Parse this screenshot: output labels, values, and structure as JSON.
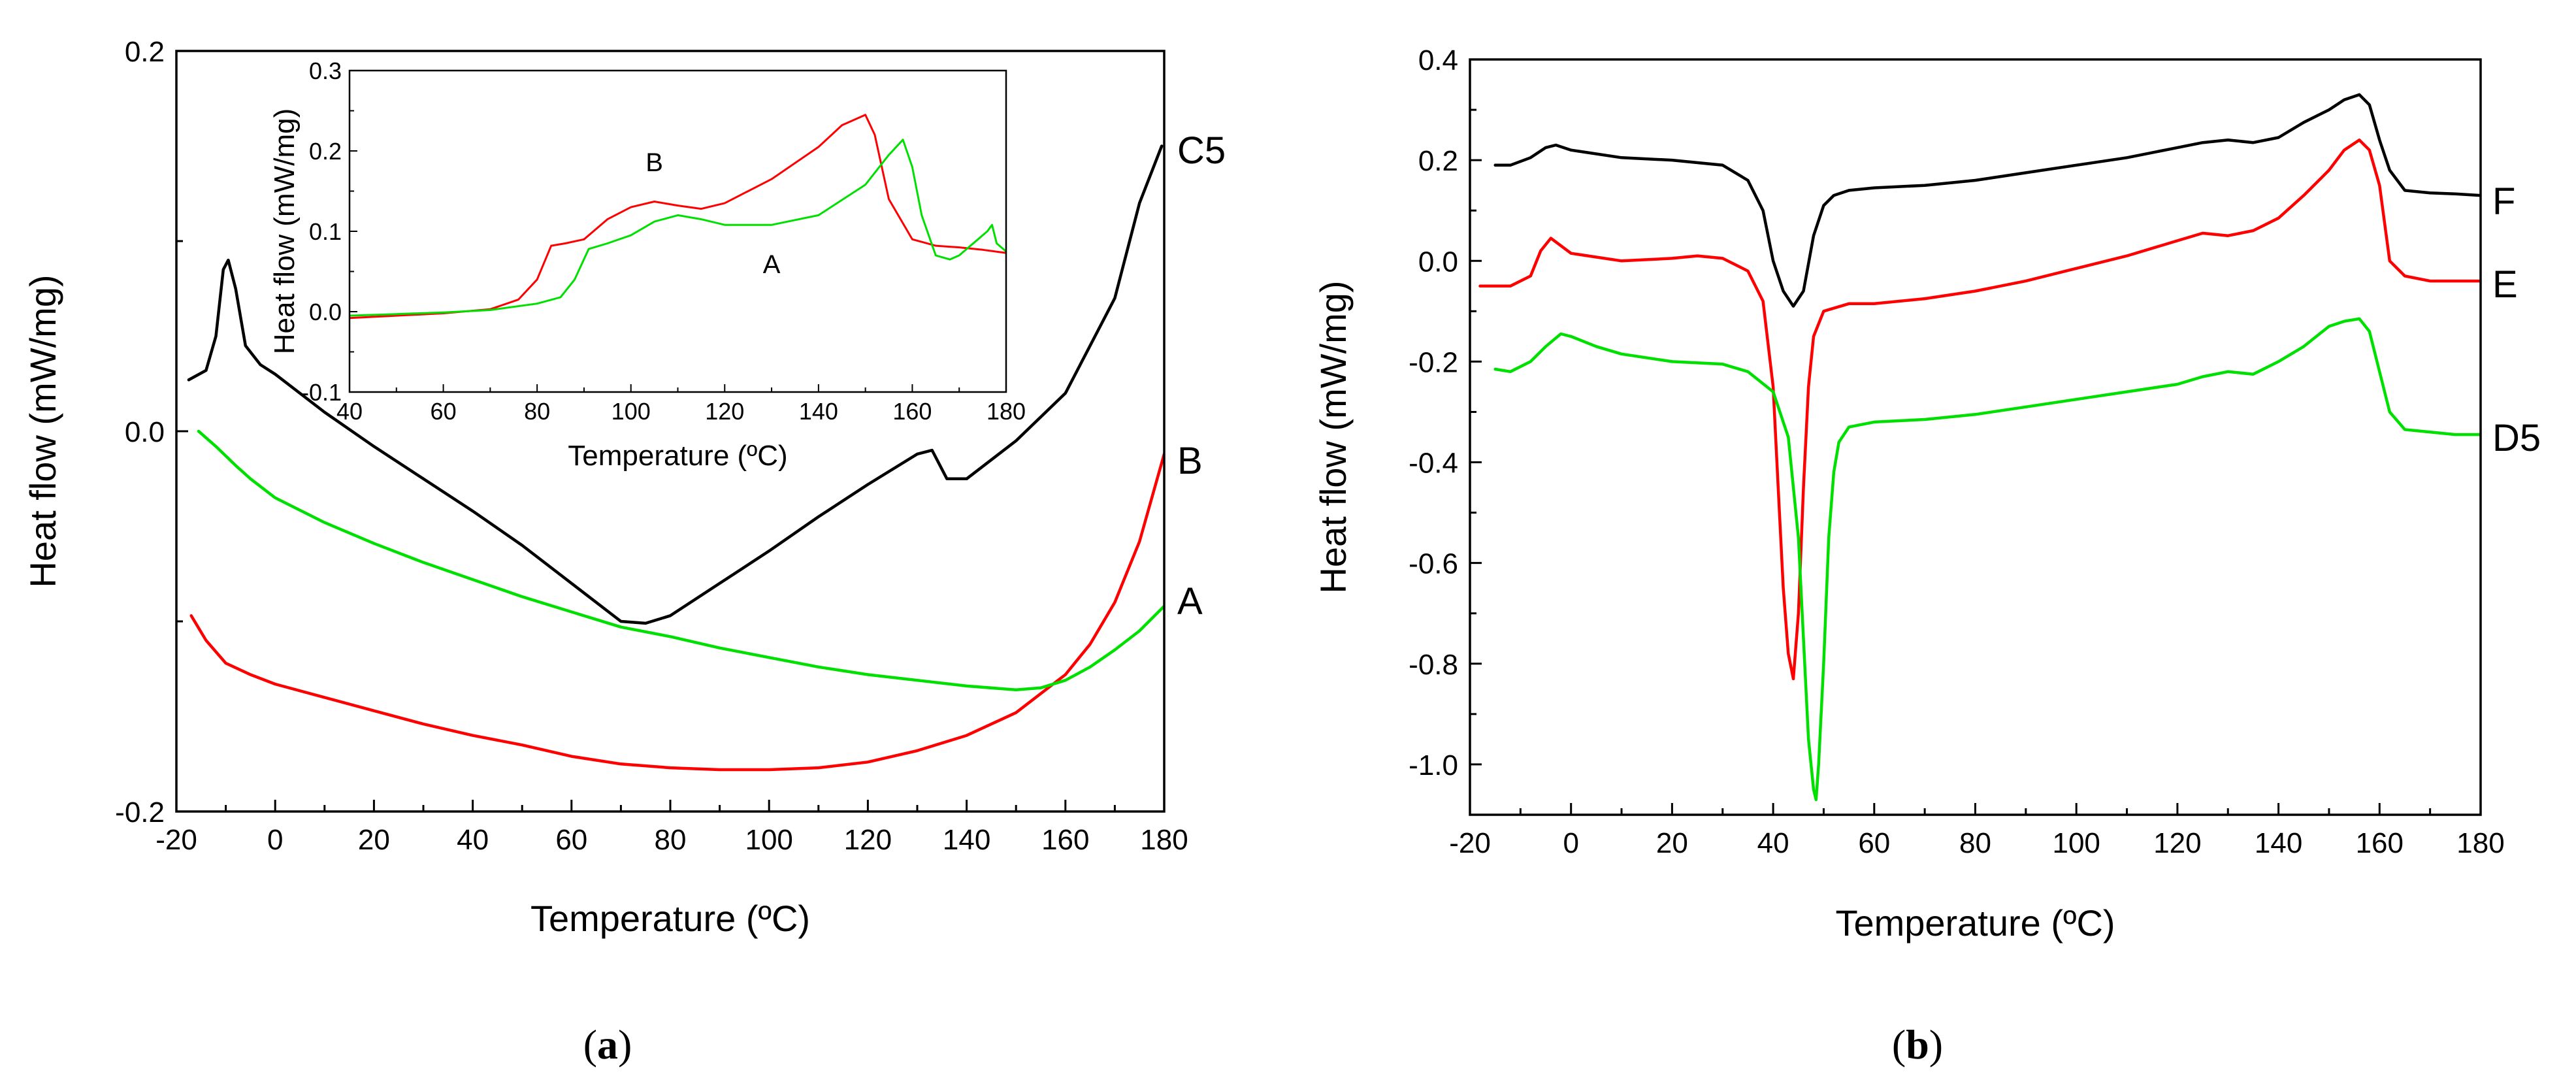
{
  "chart_data": [
    {
      "id": "panel-a",
      "type": "line",
      "caption": {
        "open": "(",
        "letter": "a",
        "close": ")"
      },
      "xlabel": "Temperature (ºC)",
      "ylabel": "Heat flow (mW/mg)",
      "xlim": [
        -20,
        180
      ],
      "ylim": [
        -0.2,
        0.2
      ],
      "xticks": [
        -20,
        0,
        20,
        40,
        60,
        80,
        100,
        120,
        140,
        160,
        180
      ],
      "xtick_labels": [
        "-20",
        "0",
        "20",
        "40",
        "60",
        "80",
        "100",
        "120",
        "140",
        "160",
        "180"
      ],
      "yticks": [
        -0.2,
        0.0,
        0.2
      ],
      "ytick_labels": [
        "-0.2",
        "0.0",
        "0.2"
      ],
      "series": [
        {
          "name": "C5",
          "color": "#000000",
          "x": [
            -17.5,
            -14,
            -12,
            -10.5,
            -9.5,
            -8,
            -6,
            -3,
            0,
            10,
            20,
            30,
            40,
            50,
            60,
            70,
            75,
            80,
            90,
            100,
            110,
            120,
            130,
            133,
            136,
            140,
            150,
            160,
            170,
            175,
            179.5
          ],
          "y": [
            0.027,
            0.032,
            0.05,
            0.085,
            0.09,
            0.075,
            0.045,
            0.035,
            0.03,
            0.01,
            -0.008,
            -0.025,
            -0.042,
            -0.06,
            -0.08,
            -0.1,
            -0.101,
            -0.097,
            -0.08,
            -0.063,
            -0.045,
            -0.028,
            -0.012,
            -0.01,
            -0.025,
            -0.025,
            -0.005,
            0.02,
            0.07,
            0.12,
            0.15
          ]
        },
        {
          "name": "B",
          "color": "#ff0000",
          "x": [
            -17,
            -14,
            -10,
            -5,
            0,
            10,
            20,
            30,
            40,
            50,
            60,
            70,
            80,
            90,
            100,
            110,
            120,
            130,
            140,
            150,
            160,
            165,
            170,
            175,
            180
          ],
          "y": [
            -0.097,
            -0.11,
            -0.122,
            -0.128,
            -0.133,
            -0.14,
            -0.147,
            -0.154,
            -0.16,
            -0.165,
            -0.171,
            -0.175,
            -0.177,
            -0.178,
            -0.178,
            -0.177,
            -0.174,
            -0.168,
            -0.16,
            -0.148,
            -0.128,
            -0.112,
            -0.09,
            -0.058,
            -0.012
          ]
        },
        {
          "name": "A",
          "color": "#00e000",
          "x": [
            -15.5,
            -12,
            -8,
            -5,
            0,
            10,
            20,
            30,
            40,
            50,
            60,
            70,
            80,
            90,
            100,
            110,
            120,
            130,
            140,
            150,
            155,
            160,
            165,
            170,
            175,
            180
          ],
          "y": [
            0.0,
            -0.008,
            -0.018,
            -0.025,
            -0.035,
            -0.048,
            -0.059,
            -0.069,
            -0.078,
            -0.087,
            -0.095,
            -0.103,
            -0.108,
            -0.114,
            -0.119,
            -0.124,
            -0.128,
            -0.131,
            -0.134,
            -0.136,
            -0.135,
            -0.131,
            -0.124,
            -0.115,
            -0.105,
            -0.092
          ]
        }
      ],
      "inset": {
        "type": "line",
        "xlabel": "Temperature (ºC)",
        "ylabel": "Heat flow (mW/mg)",
        "xlim": [
          40,
          180
        ],
        "ylim": [
          -0.1,
          0.3
        ],
        "xticks": [
          40,
          60,
          80,
          100,
          120,
          140,
          160,
          180
        ],
        "xtick_labels": [
          "40",
          "60",
          "80",
          "100",
          "120",
          "140",
          "160",
          "180"
        ],
        "yticks": [
          -0.1,
          0.0,
          0.1,
          0.2,
          0.3
        ],
        "ytick_labels": [
          "-0.1",
          "0.0",
          "0.1",
          "0.2",
          "0.3"
        ],
        "series": [
          {
            "name": "B",
            "color": "#ff0000",
            "x": [
              40,
              50,
              60,
              70,
              76,
              80,
              83,
              86,
              90,
              95,
              100,
              105,
              110,
              115,
              120,
              130,
              140,
              145,
              150,
              152,
              155,
              160,
              165,
              170,
              175,
              180
            ],
            "y": [
              -0.008,
              -0.005,
              -0.002,
              0.003,
              0.015,
              0.04,
              0.082,
              0.085,
              0.09,
              0.115,
              0.13,
              0.137,
              0.132,
              0.128,
              0.135,
              0.165,
              0.205,
              0.232,
              0.245,
              0.22,
              0.14,
              0.09,
              0.082,
              0.08,
              0.077,
              0.073
            ]
          },
          {
            "name": "A",
            "color": "#00e000",
            "x": [
              40,
              50,
              60,
              70,
              80,
              85,
              88,
              91,
              95,
              100,
              105,
              110,
              115,
              120,
              130,
              140,
              150,
              155,
              158,
              160,
              162,
              165,
              168,
              170,
              174,
              176,
              177,
              178,
              180
            ],
            "y": [
              -0.005,
              -0.003,
              -0.001,
              0.002,
              0.01,
              0.018,
              0.04,
              0.078,
              0.085,
              0.095,
              0.112,
              0.12,
              0.115,
              0.108,
              0.108,
              0.12,
              0.158,
              0.195,
              0.214,
              0.18,
              0.12,
              0.07,
              0.065,
              0.07,
              0.09,
              0.1,
              0.108,
              0.085,
              0.075
            ]
          }
        ],
        "annotations": [
          {
            "text": "B",
            "x": 105,
            "y": 0.175
          },
          {
            "text": "A",
            "x": 130,
            "y": 0.048
          }
        ]
      }
    },
    {
      "id": "panel-b",
      "type": "line",
      "caption": {
        "open": "(",
        "letter": "b",
        "close": ")"
      },
      "xlabel": "Temperature (ºC)",
      "ylabel": "Heat flow (mW/mg)",
      "xlim": [
        -20,
        180
      ],
      "ylim": [
        -1.1,
        0.4
      ],
      "xticks": [
        -20,
        0,
        20,
        40,
        60,
        80,
        100,
        120,
        140,
        160,
        180
      ],
      "xtick_labels": [
        "-20",
        "0",
        "20",
        "40",
        "60",
        "80",
        "100",
        "120",
        "140",
        "160",
        "180"
      ],
      "yticks": [
        -1.0,
        -0.8,
        -0.6,
        -0.4,
        -0.2,
        0.0,
        0.2,
        0.4
      ],
      "ytick_labels": [
        "-1.0",
        "-0.8",
        "-0.6",
        "-0.4",
        "-0.2",
        "0.0",
        "0.2",
        "0.4"
      ],
      "series": [
        {
          "name": "F",
          "color": "#000000",
          "x": [
            -15,
            -12,
            -8,
            -5,
            -3,
            0,
            10,
            20,
            30,
            35,
            38,
            40,
            42,
            44,
            46,
            48,
            50,
            52,
            55,
            60,
            70,
            80,
            90,
            100,
            110,
            120,
            125,
            130,
            135,
            140,
            145,
            150,
            153,
            156,
            158,
            160,
            162,
            165,
            170,
            175,
            180
          ],
          "y": [
            0.19,
            0.19,
            0.205,
            0.225,
            0.23,
            0.22,
            0.205,
            0.2,
            0.19,
            0.16,
            0.1,
            0.0,
            -0.06,
            -0.09,
            -0.06,
            0.05,
            0.11,
            0.13,
            0.14,
            0.145,
            0.15,
            0.16,
            0.175,
            0.19,
            0.205,
            0.225,
            0.235,
            0.24,
            0.235,
            0.245,
            0.275,
            0.3,
            0.32,
            0.33,
            0.31,
            0.24,
            0.18,
            0.14,
            0.135,
            0.133,
            0.13
          ]
        },
        {
          "name": "E",
          "color": "#ff0000",
          "x": [
            -18,
            -12,
            -8,
            -6,
            -4,
            -2,
            0,
            10,
            20,
            25,
            30,
            35,
            38,
            40,
            41,
            42,
            43,
            44,
            45,
            46,
            47,
            48,
            50,
            55,
            60,
            70,
            80,
            90,
            100,
            110,
            120,
            125,
            130,
            135,
            140,
            145,
            150,
            153,
            156,
            158,
            160,
            162,
            165,
            170,
            180
          ],
          "y": [
            -0.05,
            -0.05,
            -0.03,
            0.02,
            0.045,
            0.03,
            0.015,
            0.0,
            0.005,
            0.01,
            0.005,
            -0.02,
            -0.08,
            -0.25,
            -0.45,
            -0.65,
            -0.78,
            -0.83,
            -0.7,
            -0.45,
            -0.25,
            -0.15,
            -0.1,
            -0.085,
            -0.085,
            -0.075,
            -0.06,
            -0.04,
            -0.015,
            0.01,
            0.04,
            0.055,
            0.05,
            0.06,
            0.085,
            0.13,
            0.18,
            0.22,
            0.24,
            0.22,
            0.15,
            0.0,
            -0.03,
            -0.04,
            -0.04
          ]
        },
        {
          "name": "D5",
          "color": "#00e000",
          "x": [
            -15,
            -12,
            -8,
            -5,
            -2,
            0,
            5,
            10,
            20,
            30,
            35,
            40,
            43,
            45,
            46,
            47,
            48,
            48.5,
            49,
            50,
            51,
            52,
            53,
            55,
            60,
            70,
            80,
            90,
            100,
            110,
            120,
            125,
            130,
            135,
            140,
            145,
            150,
            153,
            156,
            158,
            160,
            162,
            165,
            170,
            175,
            180
          ],
          "y": [
            -0.215,
            -0.22,
            -0.2,
            -0.17,
            -0.145,
            -0.15,
            -0.17,
            -0.185,
            -0.2,
            -0.205,
            -0.22,
            -0.26,
            -0.35,
            -0.55,
            -0.75,
            -0.95,
            -1.05,
            -1.07,
            -1.0,
            -0.8,
            -0.55,
            -0.42,
            -0.36,
            -0.33,
            -0.32,
            -0.315,
            -0.305,
            -0.29,
            -0.275,
            -0.26,
            -0.245,
            -0.23,
            -0.22,
            -0.225,
            -0.2,
            -0.17,
            -0.13,
            -0.12,
            -0.115,
            -0.14,
            -0.22,
            -0.3,
            -0.335,
            -0.34,
            -0.345,
            -0.345
          ]
        }
      ]
    }
  ]
}
